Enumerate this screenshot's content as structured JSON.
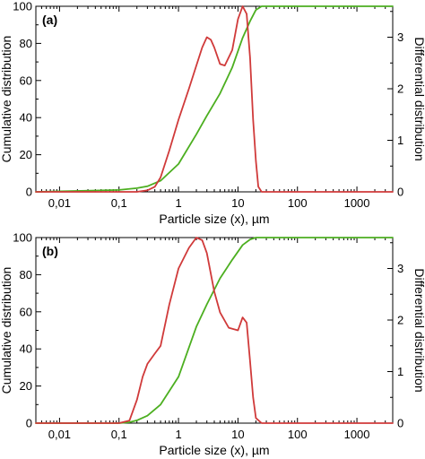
{
  "chart_data": [
    {
      "panel": "(a)",
      "type": "line",
      "xlabel": "Particle size (x), µm",
      "ylabel_left": "Cumulative distribution",
      "ylabel_right": "Differential distribution",
      "xscale": "log",
      "xlim": [
        0.004,
        4000
      ],
      "ylim_left": [
        0,
        100
      ],
      "ylim_right": [
        0,
        3.6
      ],
      "x_ticks": [
        0.01,
        0.1,
        1,
        10,
        100,
        1000
      ],
      "x_tick_labels": [
        "0,01",
        "0,1",
        "1",
        "10",
        "100",
        "1000"
      ],
      "y_left_ticks": [
        0,
        20,
        40,
        60,
        80,
        100
      ],
      "y_left_tick_labels": [
        "0",
        "20",
        "40",
        "60",
        "80",
        "100"
      ],
      "y_right_ticks": [
        0,
        1,
        2,
        3
      ],
      "y_right_tick_labels": [
        "0",
        "1",
        "2",
        "3"
      ],
      "grid": false,
      "series": [
        {
          "axis": "left",
          "color": "#4caf20",
          "x": [
            0.004,
            0.1,
            0.2,
            0.3,
            0.5,
            1,
            2,
            3,
            5,
            8,
            12,
            16,
            20,
            25,
            4000
          ],
          "y": [
            0,
            1,
            2,
            3,
            6,
            15,
            31,
            41,
            53,
            67,
            83,
            92,
            98,
            100,
            100
          ]
        },
        {
          "axis": "right",
          "color": "#d03a3a",
          "x": [
            0.004,
            0.2,
            0.3,
            0.4,
            0.5,
            0.7,
            1,
            1.5,
            2,
            2.5,
            3,
            3.5,
            4,
            5,
            6,
            8,
            10,
            12,
            14,
            16,
            18,
            20,
            22,
            25,
            4000
          ],
          "y": [
            0,
            0,
            0.03,
            0.1,
            0.28,
            0.8,
            1.4,
            2.0,
            2.45,
            2.8,
            3.0,
            2.95,
            2.8,
            2.48,
            2.45,
            2.75,
            3.35,
            3.6,
            3.45,
            2.6,
            1.4,
            0.6,
            0.1,
            0,
            0
          ]
        }
      ]
    },
    {
      "panel": "(b)",
      "type": "line",
      "xlabel": "Particle size (x), µm",
      "ylabel_left": "Cumulative distribution",
      "ylabel_right": "Differential distribution",
      "xscale": "log",
      "xlim": [
        0.004,
        4000
      ],
      "ylim_left": [
        0,
        100
      ],
      "ylim_right": [
        0,
        3.6
      ],
      "x_ticks": [
        0.01,
        0.1,
        1,
        10,
        100,
        1000
      ],
      "x_tick_labels": [
        "0,01",
        "0,1",
        "1",
        "10",
        "100",
        "1000"
      ],
      "y_left_ticks": [
        0,
        20,
        40,
        60,
        80,
        100
      ],
      "y_left_tick_labels": [
        "0",
        "20",
        "40",
        "60",
        "80",
        "100"
      ],
      "y_right_ticks": [
        0,
        1,
        2,
        3
      ],
      "y_right_tick_labels": [
        "0",
        "1",
        "2",
        "3"
      ],
      "grid": false,
      "series": [
        {
          "axis": "left",
          "color": "#4caf20",
          "x": [
            0.004,
            0.1,
            0.15,
            0.2,
            0.3,
            0.5,
            1,
            2,
            3,
            5,
            8,
            12,
            16,
            20,
            25,
            4000
          ],
          "y": [
            0,
            0,
            0.5,
            1.5,
            4,
            10,
            25,
            52,
            64,
            78,
            88,
            96,
            99,
            100,
            100,
            100
          ]
        },
        {
          "axis": "right",
          "color": "#d03a3a",
          "x": [
            0.004,
            0.1,
            0.15,
            0.2,
            0.25,
            0.3,
            0.4,
            0.5,
            0.7,
            1,
            1.5,
            2,
            2.5,
            3,
            4,
            5,
            7,
            10,
            12,
            14,
            16,
            18,
            20,
            25,
            4000
          ],
          "y": [
            0,
            0,
            0.05,
            0.45,
            0.9,
            1.15,
            1.35,
            1.5,
            2.3,
            3.0,
            3.4,
            3.6,
            3.55,
            3.3,
            2.55,
            2.15,
            1.85,
            1.8,
            2.05,
            1.95,
            1.2,
            0.5,
            0.1,
            0,
            0
          ]
        }
      ]
    }
  ]
}
